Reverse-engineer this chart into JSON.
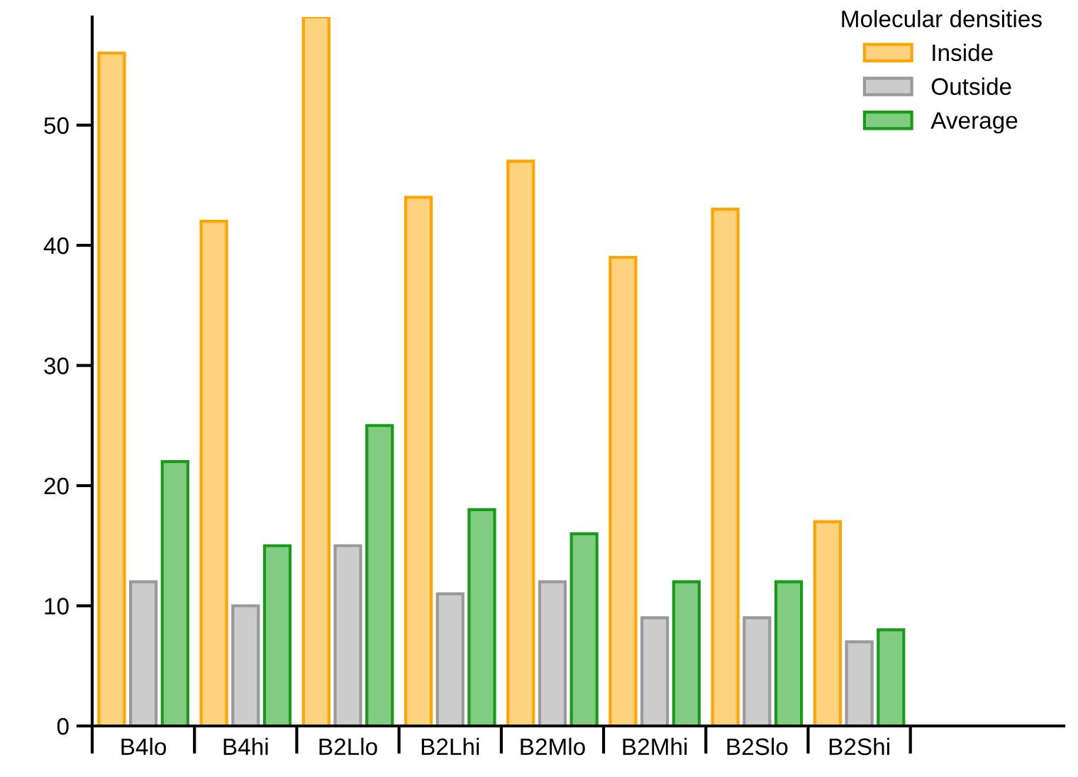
{
  "chart_data": {
    "type": "bar",
    "categories": [
      "B4lo",
      "B4hi",
      "B2Llo",
      "B2Lhi",
      "B2Mlo",
      "B2Mhi",
      "B2Slo",
      "B2Shi"
    ],
    "series": [
      {
        "name": "Inside",
        "color": "#ffd280",
        "values": [
          56,
          42,
          59,
          44,
          47,
          39,
          43,
          17
        ]
      },
      {
        "name": "Outside",
        "color": "#cccccc",
        "values": [
          12,
          10,
          15,
          11,
          12,
          9,
          9,
          7
        ]
      },
      {
        "name": "Average",
        "color": "#80cc80",
        "values": [
          22,
          15,
          25,
          18,
          16,
          12,
          12,
          8
        ]
      }
    ],
    "legend_title": "Molecular densities",
    "legend": "top right",
    "ylim": [
      0,
      59
    ],
    "yticks": [
      0,
      10,
      20,
      30,
      40,
      50
    ],
    "grid": false
  }
}
